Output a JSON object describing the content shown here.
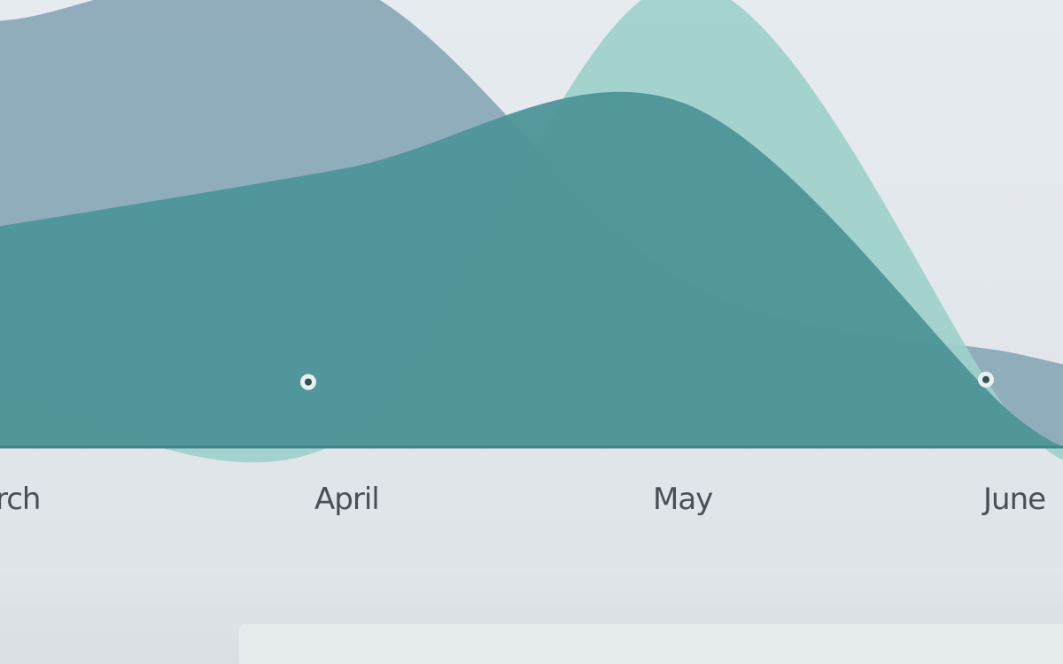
{
  "chart_data": {
    "type": "area",
    "categories": [
      "March",
      "April",
      "May",
      "June"
    ],
    "tick_labels_visible": [
      "rch",
      "April",
      "May",
      "June"
    ],
    "series": [
      {
        "color": "#8aa8b8",
        "values": [
          0.92,
          1.0,
          0.36,
          0.2
        ]
      },
      {
        "color": "#9fd1cb",
        "values": [
          0.1,
          0.02,
          1.0,
          0.05
        ]
      },
      {
        "color": "#4e9598",
        "values": [
          0.48,
          0.6,
          0.74,
          0.06
        ]
      }
    ],
    "markers": [
      {
        "category": "April",
        "value": 0.02
      },
      {
        "category": "June",
        "value": 0.05
      }
    ],
    "grid": false,
    "legend": "none",
    "colors": {
      "background": "#e3e8ec",
      "baseline": "#3f8588",
      "tick_text": "#4a4f55"
    }
  }
}
